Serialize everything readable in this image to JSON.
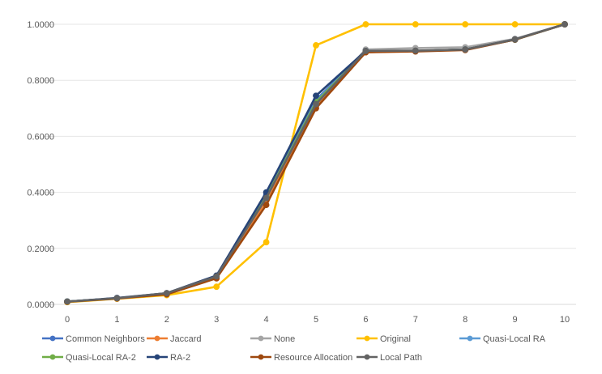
{
  "chart_data": {
    "type": "line",
    "title": "",
    "xlabel": "",
    "ylabel": "",
    "x": [
      0,
      1,
      2,
      3,
      4,
      5,
      6,
      7,
      8,
      9,
      10
    ],
    "x_tick_labels": [
      "0",
      "1",
      "2",
      "3",
      "4",
      "5",
      "6",
      "7",
      "8",
      "9",
      "10"
    ],
    "ylim": [
      0,
      1
    ],
    "y_ticks": [
      0,
      0.2,
      0.4,
      0.6,
      0.8,
      1.0
    ],
    "y_tick_labels": [
      "0.0000",
      "0.2000",
      "0.4000",
      "0.6000",
      "0.8000",
      "1.0000"
    ],
    "grid": "horizontal",
    "legend_position": "bottom",
    "series": [
      {
        "name": "Common Neighbors",
        "color": "#4472C4",
        "values": [
          0.01,
          0.022,
          0.038,
          0.1,
          0.39,
          0.73,
          0.905,
          0.905,
          0.91,
          0.945,
          1.0
        ]
      },
      {
        "name": "Jaccard",
        "color": "#ED7D31",
        "values": [
          0.01,
          0.021,
          0.036,
          0.095,
          0.37,
          0.71,
          0.9,
          0.905,
          0.91,
          0.945,
          1.0
        ]
      },
      {
        "name": "None",
        "color": "#A5A5A5",
        "values": [
          0.01,
          0.022,
          0.04,
          0.1,
          0.38,
          0.72,
          0.91,
          0.915,
          0.918,
          0.948,
          1.0
        ]
      },
      {
        "name": "Original",
        "color": "#FFC000",
        "values": [
          0.008,
          0.02,
          0.033,
          0.063,
          0.222,
          0.925,
          1.0,
          1.0,
          1.0,
          1.0,
          1.0
        ]
      },
      {
        "name": "Quasi-Local RA",
        "color": "#5B9BD5",
        "values": [
          0.01,
          0.022,
          0.038,
          0.098,
          0.385,
          0.725,
          0.905,
          0.905,
          0.91,
          0.945,
          1.0
        ]
      },
      {
        "name": "Quasi-Local RA-2",
        "color": "#70AD47",
        "values": [
          0.01,
          0.022,
          0.038,
          0.098,
          0.383,
          0.722,
          0.903,
          0.905,
          0.91,
          0.945,
          1.0
        ]
      },
      {
        "name": "RA-2",
        "color": "#264478",
        "values": [
          0.01,
          0.023,
          0.04,
          0.103,
          0.4,
          0.745,
          0.905,
          0.905,
          0.91,
          0.946,
          1.0
        ]
      },
      {
        "name": "Resource Allocation",
        "color": "#9E480E",
        "values": [
          0.009,
          0.021,
          0.036,
          0.093,
          0.355,
          0.7,
          0.9,
          0.903,
          0.908,
          0.945,
          1.0
        ]
      },
      {
        "name": "Local Path",
        "color": "#636363",
        "values": [
          0.01,
          0.022,
          0.04,
          0.1,
          0.38,
          0.715,
          0.905,
          0.906,
          0.91,
          0.946,
          1.0
        ]
      }
    ]
  }
}
